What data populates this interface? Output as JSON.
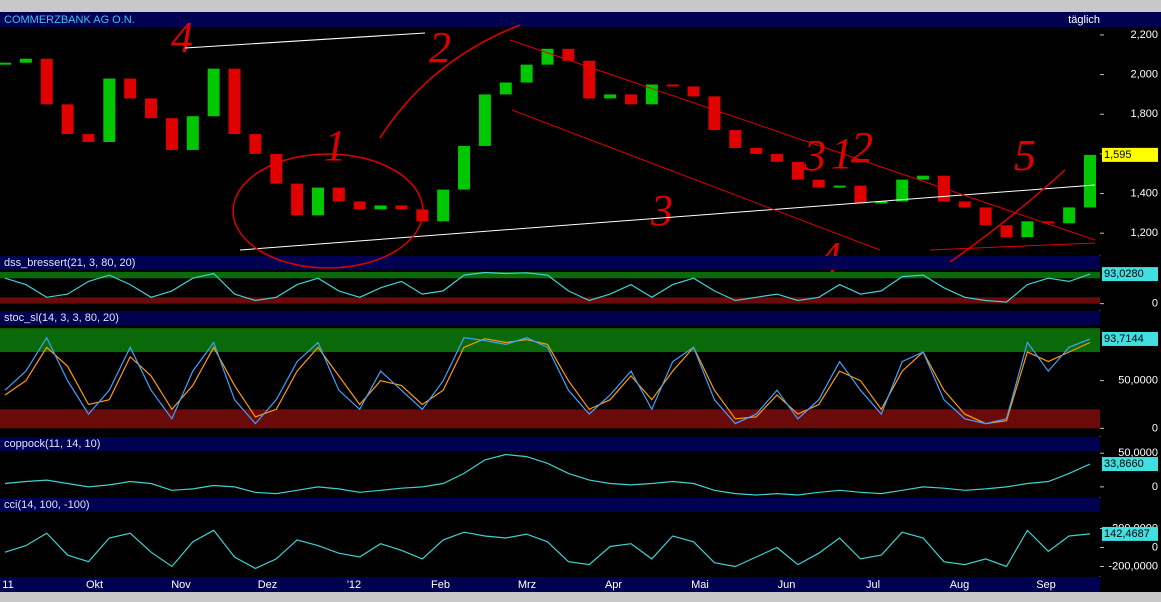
{
  "header": {
    "title": "COMMERZBANK AG O.N.",
    "period": "täglich"
  },
  "x_labels": [
    "11",
    "Okt",
    "Nov",
    "Dez",
    "'12",
    "Feb",
    "Mrz",
    "Apr",
    "Mai",
    "Jun",
    "Jul",
    "Aug",
    "Sep"
  ],
  "chart_data": [
    {
      "type": "candlestick",
      "values": [
        2060,
        2080,
        1850,
        1700,
        1660,
        1980,
        1880,
        1780,
        1620,
        1790,
        2030,
        1700,
        1600,
        1450,
        1290,
        1430,
        1360,
        1320,
        1340,
        1320,
        1260,
        1420,
        1640,
        1900,
        1960,
        2050,
        2130,
        2070,
        1880,
        1900,
        1850,
        1950,
        1940,
        1890,
        1720,
        1630,
        1600,
        1560,
        1470,
        1430,
        1440,
        1350,
        1360,
        1470,
        1490,
        1360,
        1330,
        1240,
        1180,
        1260,
        1250,
        1330,
        1595
      ],
      "up_color": "#00c800",
      "down_color": "#e00000",
      "ylim": [
        1090,
        2240
      ],
      "yticks": [
        {
          "value": 1200,
          "label": "1,200"
        },
        {
          "value": 1400,
          "label": "1,400"
        },
        {
          "value": 1600,
          "label": "1,600"
        },
        {
          "value": 1800,
          "label": "1,800"
        },
        {
          "value": 2000,
          "label": "2,000"
        },
        {
          "value": 2200,
          "label": "2,200"
        }
      ],
      "last_value_label": "1,595",
      "last_label_color": "#ffff00",
      "annotations": [
        "4",
        "2",
        "1",
        "3",
        "3",
        "1",
        "2",
        "4",
        "5"
      ]
    },
    {
      "type": "line",
      "title": "dss_bressert(21, 3, 80, 20)",
      "series": [
        {
          "color": "#40d0d0",
          "values": [
            80,
            60,
            20,
            30,
            70,
            90,
            60,
            20,
            40,
            80,
            95,
            30,
            10,
            20,
            60,
            80,
            40,
            20,
            50,
            70,
            30,
            40,
            90,
            98,
            95,
            97,
            90,
            40,
            10,
            30,
            60,
            20,
            60,
            80,
            40,
            10,
            20,
            30,
            10,
            20,
            60,
            30,
            40,
            85,
            90,
            50,
            20,
            10,
            5,
            60,
            80,
            70,
            93.028
          ]
        }
      ],
      "ylim": [
        -20,
        150
      ],
      "yticks": [
        0
      ],
      "zones": [
        {
          "from": 80,
          "to": 100,
          "color": "#0a6a0a"
        },
        {
          "from": 0,
          "to": 20,
          "color": "#6a0a0a"
        }
      ],
      "last_value_label": "93,0280",
      "last_label_color": "#40e0e0"
    },
    {
      "type": "line",
      "title": "stoc_sl(14, 3, 3, 80, 20)",
      "series": [
        {
          "color": "#ff9900",
          "values": [
            35,
            50,
            85,
            65,
            25,
            30,
            75,
            55,
            20,
            45,
            85,
            45,
            12,
            20,
            60,
            85,
            55,
            25,
            50,
            45,
            25,
            40,
            85,
            94,
            90,
            93,
            88,
            50,
            20,
            30,
            55,
            30,
            60,
            85,
            40,
            10,
            12,
            35,
            15,
            25,
            60,
            50,
            20,
            60,
            80,
            40,
            15,
            5,
            8,
            80,
            70,
            80,
            90
          ]
        },
        {
          "color": "#40a0ff",
          "values": [
            40,
            60,
            95,
            50,
            15,
            40,
            85,
            40,
            10,
            60,
            90,
            30,
            5,
            30,
            70,
            90,
            40,
            20,
            60,
            40,
            20,
            50,
            95,
            92,
            88,
            95,
            85,
            40,
            15,
            35,
            60,
            20,
            70,
            85,
            30,
            5,
            15,
            40,
            10,
            30,
            70,
            40,
            15,
            70,
            80,
            30,
            10,
            5,
            10,
            90,
            60,
            85,
            93.7144
          ]
        }
      ],
      "ylim": [
        -8,
        123
      ],
      "yticks": [
        0,
        {
          "value": 50,
          "label": "50,0000"
        }
      ],
      "zones": [
        {
          "from": 80,
          "to": 105,
          "color": "#0a6a0a"
        },
        {
          "from": 0,
          "to": 20,
          "color": "#6a0a0a"
        }
      ],
      "last_value_label": "93,7144",
      "last_label_color": "#40e0e0"
    },
    {
      "type": "line",
      "title": "coppock(11, 14, 10)",
      "series": [
        {
          "color": "#40d0d0",
          "values": [
            5,
            8,
            10,
            5,
            0,
            3,
            8,
            5,
            -5,
            -3,
            2,
            0,
            -8,
            -10,
            -5,
            0,
            -3,
            -8,
            -5,
            -2,
            0,
            5,
            20,
            40,
            48,
            45,
            35,
            20,
            10,
            5,
            3,
            5,
            8,
            5,
            -5,
            -10,
            -12,
            -10,
            -12,
            -8,
            -5,
            -8,
            -10,
            -5,
            0,
            -2,
            -5,
            -3,
            0,
            5,
            8,
            20,
            33.866
          ]
        }
      ],
      "ylim": [
        -15,
        74
      ],
      "yticks": [
        0,
        {
          "value": 50,
          "label": "50,0000"
        }
      ],
      "last_value_label": "33,8660",
      "last_label_color": "#40e0e0"
    },
    {
      "type": "line",
      "title": "cci(14, 100, -100)",
      "series": [
        {
          "color": "#40d0d0",
          "values": [
            -50,
            20,
            150,
            -80,
            -150,
            100,
            150,
            -50,
            -200,
            60,
            180,
            -100,
            -220,
            -120,
            80,
            20,
            -60,
            -100,
            40,
            -30,
            -120,
            80,
            160,
            120,
            100,
            140,
            60,
            -150,
            -180,
            10,
            40,
            -120,
            120,
            60,
            -160,
            -200,
            -100,
            0,
            -180,
            -60,
            100,
            -120,
            -80,
            160,
            100,
            -150,
            -180,
            -120,
            -200,
            180,
            -40,
            120,
            142.4687
          ]
        }
      ],
      "ylim": [
        -300,
        520
      ],
      "yticks": [
        {
          "value": -200,
          "label": "-200,0000"
        },
        0,
        {
          "value": 200,
          "label": "200,0000"
        }
      ],
      "last_value_label": "142,4687",
      "last_label_color": "#40e0e0"
    }
  ]
}
